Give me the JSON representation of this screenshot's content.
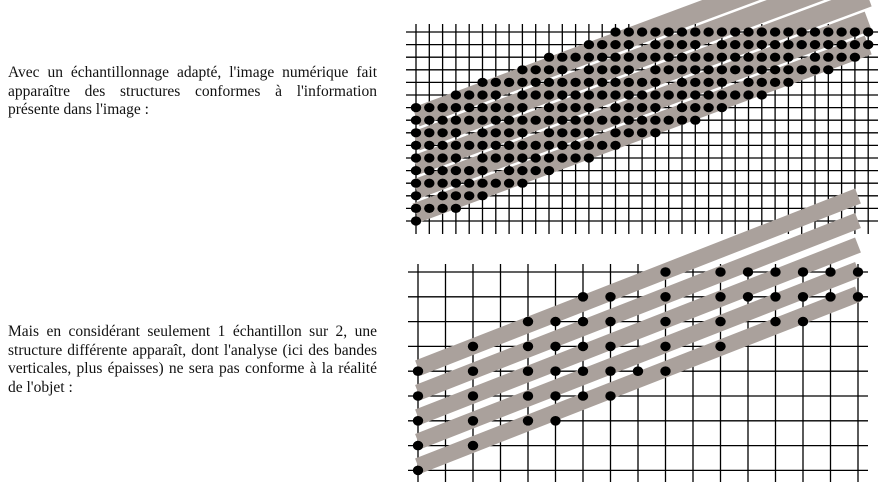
{
  "text": {
    "paragraph_top": "Avec un échantillonnage adapté, l'image numérique fait apparaître des structures conformes à l'information présente dans l'image :",
    "paragraph_bottom": "Mais en considérant seulement 1 échantillon sur 2, une structure différente apparaît, dont l'analyse (ici des bandes verticales, plus épaisses) ne sera pas conforme à la réalité de l'objet :"
  },
  "colors": {
    "grid": "#000000",
    "band": "#aaa19c",
    "dot": "#000000"
  }
}
